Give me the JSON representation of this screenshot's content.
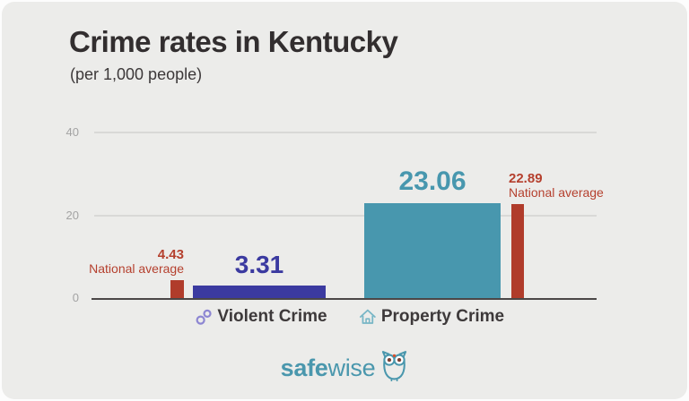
{
  "header": {
    "title": "Crime rates in Kentucky",
    "subtitle": "(per 1,000 people)"
  },
  "chart_data": {
    "type": "bar",
    "title": "Crime rates in Kentucky",
    "subtitle": "(per 1,000 people)",
    "xlabel": "",
    "ylabel": "",
    "ylim": [
      0,
      40
    ],
    "yticks": [
      0,
      20,
      40
    ],
    "gridlines": [
      20,
      40
    ],
    "legend_position": "none",
    "categories": [
      "Violent Crime",
      "Property Crime"
    ],
    "series": [
      {
        "name": "Kentucky",
        "values": [
          3.31,
          23.06
        ],
        "colors": [
          "#3b3aa0",
          "#4897ae"
        ]
      },
      {
        "name": "National average",
        "values": [
          4.43,
          22.89
        ],
        "color": "#b03c2b"
      }
    ],
    "category_icons": [
      "handcuffs-icon",
      "house-icon"
    ]
  },
  "logo": {
    "text_bold": "safe",
    "text_light": "wise",
    "icon": "owl-icon"
  },
  "colors": {
    "background": "#ececea",
    "title_text": "#322e2f",
    "violent_bar": "#3b3aa0",
    "property_bar": "#4897ae",
    "national_average": "#b03c2b",
    "grid": "#d9d9d7",
    "axis": "#4b4747",
    "logo_teal": "#4a97ad"
  }
}
